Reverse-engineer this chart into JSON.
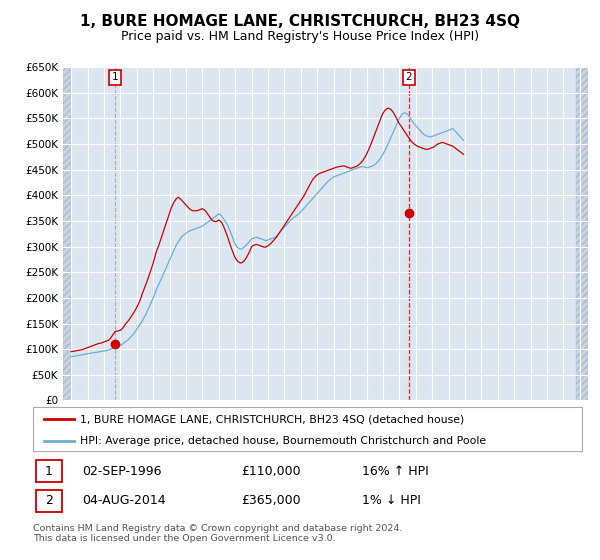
{
  "title": "1, BURE HOMAGE LANE, CHRISTCHURCH, BH23 4SQ",
  "subtitle": "Price paid vs. HM Land Registry's House Price Index (HPI)",
  "legend_line1": "1, BURE HOMAGE LANE, CHRISTCHURCH, BH23 4SQ (detached house)",
  "legend_line2": "HPI: Average price, detached house, Bournemouth Christchurch and Poole",
  "footnote": "Contains HM Land Registry data © Crown copyright and database right 2024.\nThis data is licensed under the Open Government Licence v3.0.",
  "sale1_date": "02-SEP-1996",
  "sale1_price": "£110,000",
  "sale1_hpi": "16% ↑ HPI",
  "sale1_year": 1996.67,
  "sale1_value": 110000,
  "sale2_date": "04-AUG-2014",
  "sale2_price": "£365,000",
  "sale2_hpi": "1% ↓ HPI",
  "sale2_year": 2014.58,
  "sale2_value": 365000,
  "ylim": [
    0,
    650000
  ],
  "yticks": [
    0,
    50000,
    100000,
    150000,
    200000,
    250000,
    300000,
    350000,
    400000,
    450000,
    500000,
    550000,
    600000,
    650000
  ],
  "xlim_start": 1993.5,
  "xlim_end": 2025.5,
  "red_color": "#cc0000",
  "blue_color": "#6baed6",
  "bg_plot": "#dce6f1",
  "grid_color": "#ffffff",
  "hatch_start_year": 2024.75,
  "sale1_vline_year": 1996.1,
  "title_fontsize": 11,
  "subtitle_fontsize": 9,
  "axis_fontsize": 7.5,
  "hpi_monthly": [
    85000,
    85500,
    86000,
    86500,
    87000,
    87500,
    88000,
    88500,
    89000,
    89500,
    90000,
    90500,
    91000,
    91500,
    92000,
    92500,
    93000,
    93200,
    93500,
    94000,
    94500,
    95000,
    95500,
    96000,
    96500,
    97000,
    97500,
    98000,
    99000,
    100000,
    101000,
    102000,
    103000,
    104000,
    105000,
    106000,
    107000,
    109000,
    111000,
    113000,
    115000,
    117000,
    119000,
    122000,
    125000,
    128000,
    131000,
    135000,
    139000,
    143000,
    147000,
    151000,
    155000,
    160000,
    165000,
    170000,
    176000,
    182000,
    188000,
    194000,
    200000,
    207000,
    214000,
    220000,
    226000,
    232000,
    238000,
    244000,
    250000,
    256000,
    262000,
    268000,
    274000,
    280000,
    286000,
    292000,
    298000,
    304000,
    308000,
    312000,
    316000,
    320000,
    322000,
    324000,
    326000,
    328000,
    330000,
    331000,
    332000,
    333000,
    334000,
    335000,
    336000,
    337000,
    338000,
    339000,
    340000,
    342000,
    344000,
    346000,
    348000,
    350000,
    352000,
    354000,
    356000,
    358000,
    360000,
    362000,
    364000,
    362000,
    360000,
    356000,
    352000,
    348000,
    344000,
    338000,
    332000,
    325000,
    318000,
    310000,
    305000,
    300000,
    298000,
    296000,
    295000,
    296000,
    298000,
    300000,
    303000,
    306000,
    309000,
    312000,
    315000,
    316000,
    317000,
    318000,
    318000,
    317000,
    316000,
    315000,
    314000,
    313000,
    312000,
    312000,
    313000,
    314000,
    315000,
    316000,
    317000,
    318000,
    320000,
    323000,
    326000,
    329000,
    332000,
    335000,
    338000,
    341000,
    344000,
    347000,
    350000,
    353000,
    355000,
    357000,
    359000,
    361000,
    363000,
    365000,
    368000,
    371000,
    374000,
    377000,
    380000,
    383000,
    386000,
    389000,
    392000,
    395000,
    398000,
    401000,
    404000,
    407000,
    410000,
    413000,
    416000,
    419000,
    422000,
    425000,
    428000,
    430000,
    432000,
    434000,
    436000,
    437000,
    438000,
    439000,
    440000,
    441000,
    442000,
    443000,
    444000,
    445000,
    446000,
    447000,
    448000,
    449000,
    450000,
    451000,
    452000,
    453000,
    454000,
    455000,
    455500,
    456000,
    456000,
    455000,
    454000,
    454000,
    455000,
    456000,
    457000,
    458000,
    460000,
    462000,
    465000,
    468000,
    472000,
    476000,
    480000,
    485000,
    490000,
    496000,
    502000,
    508000,
    514000,
    520000,
    526000,
    532000,
    538000,
    544000,
    550000,
    554000,
    558000,
    560000,
    561000,
    560000,
    558000,
    555000,
    551000,
    547000,
    543000,
    539000,
    536000,
    533000,
    530000,
    527000,
    524000,
    521000,
    519000,
    517000,
    516000,
    515000,
    514000,
    514000,
    515000,
    516000,
    517000,
    518000,
    519000,
    520000,
    521000,
    522000,
    523000,
    524000,
    525000,
    526000,
    527000,
    528000,
    529000,
    530000,
    528000,
    525000,
    522000,
    519000,
    516000,
    513000,
    510000,
    507000
  ],
  "red_monthly": [
    95000,
    95500,
    96000,
    96500,
    97000,
    97500,
    98000,
    98500,
    99000,
    100000,
    101000,
    102000,
    103000,
    104000,
    105000,
    106000,
    107000,
    108000,
    109000,
    110000,
    111000,
    111500,
    112000,
    113000,
    114000,
    115000,
    116000,
    117000,
    119000,
    122000,
    126000,
    130000,
    134000,
    135000,
    135500,
    136000,
    137000,
    139000,
    142000,
    146000,
    150000,
    153000,
    156000,
    160000,
    164000,
    168000,
    172000,
    177000,
    182000,
    187000,
    193000,
    200000,
    208000,
    215000,
    222000,
    229000,
    236000,
    244000,
    252000,
    260000,
    268000,
    278000,
    288000,
    295000,
    302000,
    310000,
    318000,
    326000,
    334000,
    342000,
    350000,
    358000,
    366000,
    374000,
    380000,
    386000,
    390000,
    394000,
    396000,
    395000,
    393000,
    390000,
    387000,
    384000,
    381000,
    378000,
    375000,
    373000,
    371000,
    370000,
    370000,
    370000,
    370000,
    371000,
    372000,
    373000,
    374000,
    372000,
    370000,
    367000,
    363000,
    359000,
    355000,
    352000,
    350000,
    349000,
    349000,
    350000,
    352000,
    350000,
    347000,
    342000,
    336000,
    329000,
    322000,
    314000,
    306000,
    298000,
    291000,
    284000,
    278000,
    274000,
    271000,
    269000,
    268000,
    269000,
    271000,
    274000,
    278000,
    283000,
    288000,
    294000,
    300000,
    302000,
    303000,
    304000,
    304000,
    303000,
    302000,
    301000,
    300000,
    299000,
    299000,
    300000,
    302000,
    304000,
    306000,
    309000,
    312000,
    315000,
    318000,
    322000,
    326000,
    330000,
    334000,
    338000,
    342000,
    346000,
    350000,
    354000,
    358000,
    362000,
    366000,
    370000,
    374000,
    378000,
    382000,
    386000,
    390000,
    394000,
    398000,
    403000,
    408000,
    413000,
    418000,
    423000,
    428000,
    432000,
    435000,
    438000,
    440000,
    442000,
    443000,
    444000,
    445000,
    446000,
    447000,
    448000,
    449000,
    450000,
    451000,
    452000,
    453000,
    454000,
    455000,
    455500,
    456000,
    456500,
    457000,
    457500,
    457000,
    456000,
    455000,
    454000,
    453000,
    453000,
    454000,
    455000,
    456000,
    457000,
    459000,
    461000,
    464000,
    467000,
    471000,
    475000,
    480000,
    486000,
    492000,
    498000,
    505000,
    512000,
    519000,
    526000,
    533000,
    540000,
    547000,
    554000,
    560000,
    564000,
    567000,
    569000,
    570000,
    569000,
    567000,
    564000,
    560000,
    555000,
    550000,
    545000,
    540000,
    536000,
    532000,
    528000,
    524000,
    520000,
    516000,
    512000,
    508000,
    505000,
    502000,
    500000,
    498000,
    496000,
    495000,
    494000,
    493000,
    492000,
    491000,
    490000,
    490000,
    490000,
    491000,
    492000,
    493000,
    494000,
    496000,
    498000,
    500000,
    501000,
    502000,
    503000,
    503000,
    502000,
    501000,
    500000,
    499000,
    498000,
    497000,
    496000,
    494000,
    492000,
    490000,
    488000,
    486000,
    484000,
    482000,
    480000
  ]
}
